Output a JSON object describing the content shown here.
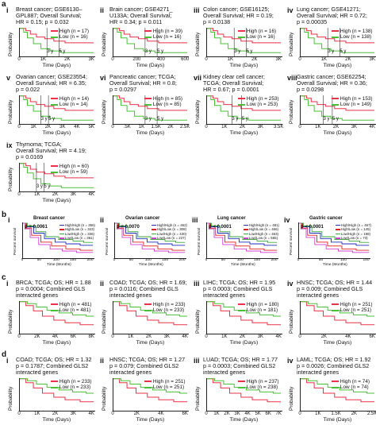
{
  "sections": {
    "a": "a",
    "b": "b",
    "c": "c",
    "d": "d"
  },
  "colors": {
    "high": "#e8334a",
    "low": "#4bbf3a",
    "b_series": [
      "#1f2db8",
      "#e02020",
      "#3aa83a",
      "#d040d0"
    ]
  },
  "common": {
    "probability": "Probability",
    "time_days": "Time (Days)",
    "time_months": "Time (Months)",
    "percent_survival": "Percent survival",
    "three_y": "3 y",
    "five_y": "5 y"
  },
  "panels_a": [
    {
      "roman": "i",
      "title": [
        "Breast cancer; GSE6130–",
        "GPL887; Overall Survival;",
        "HR = 0.15; p = 0.032"
      ],
      "high": "High (n = 17)",
      "low": "Low (n = 16)",
      "ticks": [
        "0",
        "1K",
        "2K",
        "3K"
      ],
      "chart_data": {
        "type": "line",
        "x_ticks": [
          "0",
          "1K",
          "2K",
          "3K"
        ],
        "series": [
          {
            "name": "High (n = 17)",
            "color": "#e8334a"
          },
          {
            "name": "Low (n = 16)",
            "color": "#4bbf3a"
          }
        ]
      }
    },
    {
      "roman": "ii",
      "title": [
        "Brain cancer; GSE4271_",
        "U133A; Overall Survival;",
        "HR = 0.34; p = 0.011"
      ],
      "high": "High (n = 39)",
      "low": "Low (n = 16)",
      "ticks": [
        "0",
        "200",
        "400",
        "600"
      ],
      "chart_data": {
        "type": "line",
        "x_ticks": [
          "0",
          "200",
          "400",
          "600"
        ],
        "series": [
          {
            "name": "High (n = 39)",
            "color": "#e8334a"
          },
          {
            "name": "Low (n = 16)",
            "color": "#4bbf3a"
          }
        ]
      }
    },
    {
      "roman": "iii",
      "title": [
        "Colon cancer; GSE16125;",
        "Overall Survival; HR = 0.19;",
        "p = 0.0138"
      ],
      "high": "High (n = 16)",
      "low": "Low (n = 16)",
      "ticks": [
        "0",
        "1K",
        "2K",
        "3K"
      ],
      "chart_data": {
        "type": "line",
        "x_ticks": [
          "0",
          "1K",
          "2K",
          "3K"
        ],
        "series": [
          {
            "name": "High (n = 16)",
            "color": "#e8334a"
          },
          {
            "name": "Low (n = 16)",
            "color": "#4bbf3a"
          }
        ]
      }
    },
    {
      "roman": "iv",
      "title": [
        "Lung cancer; GSE41271;",
        "Overall Survival; HR = 0.72;",
        "p = 0.00035"
      ],
      "high": "High (n = 138)",
      "low": "Low (n = 138)",
      "ticks": [
        "0",
        "1K",
        "2K",
        "3K"
      ],
      "chart_data": {
        "type": "line",
        "x_ticks": [
          "0",
          "1K",
          "2K",
          "3K"
        ],
        "series": [
          {
            "name": "High (n = 138)",
            "color": "#e8334a"
          },
          {
            "name": "Low (n = 138)",
            "color": "#4bbf3a"
          }
        ]
      }
    },
    {
      "roman": "v",
      "title": [
        "Ovarian cancer; GSE23554;",
        "Overall Survival; HR = 6.35;",
        "p = 0.022"
      ],
      "high": "High (n = 14)",
      "low": "Low (n = 14)",
      "ticks": [
        "0",
        "1K",
        "2K",
        "3K",
        "4K",
        "5K"
      ],
      "chart_data": {
        "type": "line",
        "x_ticks": [
          "0",
          "1K",
          "2K",
          "3K",
          "4K",
          "5K"
        ],
        "series": [
          {
            "name": "High (n = 14)",
            "color": "#e8334a"
          },
          {
            "name": "Low (n = 14)",
            "color": "#4bbf3a"
          }
        ]
      }
    },
    {
      "roman": "vi",
      "title": [
        "Pancreatic cancer; TCGA;",
        "Overall Survival; HR = 0.8;",
        "p = 0.0297"
      ],
      "high": "High (n = 85)",
      "low": "Low (n = 85)",
      "ticks": [
        "0",
        ".5K",
        "1K",
        "1.5K",
        "2K",
        "2.5K"
      ],
      "chart_data": {
        "type": "line",
        "x_ticks": [
          "0",
          ".5K",
          "1K",
          "1.5K",
          "2K",
          "2.5K"
        ],
        "series": [
          {
            "name": "High (n = 85)",
            "color": "#e8334a"
          },
          {
            "name": "Low (n = 85)",
            "color": "#4bbf3a"
          }
        ]
      }
    },
    {
      "roman": "vii",
      "title": [
        "Kidney clear cell cancer;",
        "TCGA; Overall Survival;",
        "HR = 0.67; p = 0.0001"
      ],
      "high": "High (n = 253)",
      "low": "Low (n = 253)",
      "ticks": [
        "0",
        "1K",
        "2K",
        "3K",
        "3.5K"
      ],
      "chart_data": {
        "type": "line",
        "x_ticks": [
          "0",
          "1K",
          "2K",
          "3K",
          "3.5K"
        ],
        "series": [
          {
            "name": "High (n = 253)",
            "color": "#e8334a"
          },
          {
            "name": "Low (n = 253)",
            "color": "#4bbf3a"
          }
        ]
      }
    },
    {
      "roman": "viii",
      "title": [
        "Gastric cancer; GSE62254;",
        "Overall Survival; HR = 0.36;",
        "p = 0.0298"
      ],
      "high": "High (n = 153)",
      "low": "Low (n = 149)",
      "ticks": [
        "0",
        "1K",
        "2K",
        "3K",
        "4K"
      ],
      "chart_data": {
        "type": "line",
        "x_ticks": [
          "0",
          "1K",
          "2K",
          "3K",
          "4K"
        ],
        "series": [
          {
            "name": "High (n = 153)",
            "color": "#e8334a"
          },
          {
            "name": "Low (n = 149)",
            "color": "#4bbf3a"
          }
        ]
      }
    },
    {
      "roman": "ix",
      "title": [
        "Thymoma; TCGA;",
        "Overall Survival; HR = 4.19;",
        "p = 0.0169"
      ],
      "high": "High (n = 60)",
      "low": "Low (n = 59)",
      "ticks": [
        "0",
        "1K",
        "2K",
        "3K",
        "4K"
      ],
      "chart_data": {
        "type": "line",
        "x_ticks": [
          "0",
          "1K",
          "2K",
          "3K",
          "4K"
        ],
        "series": [
          {
            "name": "High (n = 60)",
            "color": "#e8334a"
          },
          {
            "name": "Low (n = 59)",
            "color": "#4bbf3a"
          }
        ]
      }
    }
  ],
  "panels_b": [
    {
      "roman": "i",
      "title": "Breast cancer",
      "p": "p = 0.0061",
      "legend": [
        "High/High (n = 356)",
        "High/Low (n = 343)",
        "Low/High (n = 336)",
        "Low/Low (n = 361)"
      ],
      "ticks": [
        "0",
        "50",
        "100",
        "150",
        "200"
      ]
    },
    {
      "roman": "ii",
      "title": "Ovarian cancer",
      "p": "p = 0.0070",
      "legend": [
        "High/High (n = 462)",
        "High/Low (n = 308)",
        "Low/High (n = 430)",
        "Low/Low (n = 227)"
      ],
      "ticks": [
        "0",
        "50",
        "100",
        "150",
        "200"
      ]
    },
    {
      "roman": "iii",
      "title": "Lung cancer",
      "p": "p < 0.0001",
      "legend": [
        "High/High (n = 481)",
        "High/Low (n = 466)",
        "Low/High (n = 463)",
        "Low/Low (n = 555)"
      ],
      "ticks": [
        "0",
        "50",
        "100",
        "150",
        "200"
      ]
    },
    {
      "roman": "iv",
      "title": "Gastric cancer",
      "p": "p < 0.0001",
      "legend": [
        "High/High (n = 467)",
        "High/Low (n = 145)",
        "Low/High (n = 198)",
        "Low/Low (n = 73)"
      ],
      "ticks": [
        "0",
        "50",
        "100",
        "150"
      ]
    }
  ],
  "panels_c": [
    {
      "roman": "i",
      "title": [
        "BRCA; TCGA; OS; HR = 1.88",
        "p = 0.0004; Combined GLS",
        "interacted genes"
      ],
      "high": "High (n = 481)",
      "low": "Low (n = 481)",
      "ticks": [
        "0",
        "2K",
        "4K",
        "6K",
        "8K"
      ]
    },
    {
      "roman": "ii",
      "title": [
        "COAD; TCGA; OS; HR = 1.69;",
        "p = 0.0116; Combined GLS",
        "interacted genes"
      ],
      "high": "High (n = 233)",
      "low": "Low (n = 233)",
      "ticks": [
        "0",
        "1K",
        "2K",
        "3K",
        "4K"
      ]
    },
    {
      "roman": "iii",
      "title": [
        "LIHC; TCGA; OS; HR = 1.95",
        "p = 0.0003; Combined GLS",
        "interacted genes"
      ],
      "high": "High (n = 180)",
      "low": "Low (n = 181)",
      "ticks": [
        "0",
        "1K",
        "2K",
        "3K",
        "4K"
      ]
    },
    {
      "roman": "iv",
      "title": [
        "HNSC; TCGA; OS; HR = 1.44",
        "p = 0.009; Combined GLS",
        "interacted genes"
      ],
      "high": "High (n = 251)",
      "low": "Low (n = 251)",
      "ticks": [
        "0",
        "2K",
        "4K",
        "6K"
      ]
    }
  ],
  "panels_d": [
    {
      "roman": "i",
      "title": [
        "COAD; TCGA; OS; HR = 1.32",
        "p = 0.1787; Combined GLS2",
        "interacted genes"
      ],
      "high": "High (n = 233)",
      "low": "Low (n = 233)",
      "ticks": [
        "0",
        "1K",
        "2K",
        "3K",
        "4K"
      ]
    },
    {
      "roman": "ii",
      "title": [
        "HNSC; TCGA; OS; HR = 1.27",
        "p = 0.079; Combined GLS2",
        "interacted genes"
      ],
      "high": "High (n = 251)",
      "low": "Low (n = 251)",
      "ticks": [
        "0",
        "2K",
        "4K",
        "6K"
      ]
    },
    {
      "roman": "iii",
      "title": [
        "LUAD; TCGA; OS; HR = 1.77",
        "p = 0.0003; Combined GLS2",
        "interacted genes"
      ],
      "high": "High (n = 237)",
      "low": "Low (n = 238)",
      "ticks": [
        "0",
        "1K",
        "2K",
        "3K",
        "4K",
        "5K",
        "6K",
        "7K"
      ]
    },
    {
      "roman": "iv",
      "title": [
        "LAML; TCGA; OS; HR = 1.92",
        "p = 0.0026; Combined GLS2",
        "interacted genes"
      ],
      "high": "High (n = 74)",
      "low": "Low (n = 74)",
      "ticks": [
        "0",
        "1K",
        "1.5K",
        "2K",
        "2.5K"
      ]
    }
  ]
}
